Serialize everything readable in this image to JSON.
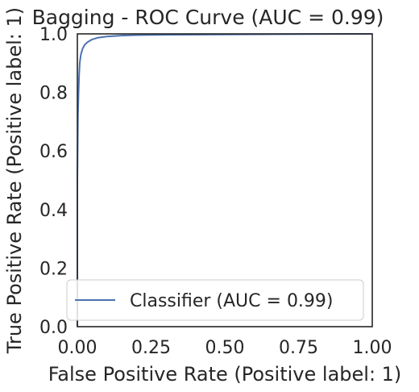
{
  "chart_data": {
    "type": "line",
    "title": "Bagging - ROC Curve (AUC = 0.99)",
    "xlabel": "False Positive Rate (Positive label: 1)",
    "ylabel": "True Positive Rate (Positive label: 1)",
    "xlim": [
      0,
      1
    ],
    "ylim": [
      0,
      1
    ],
    "x_ticks": [
      "0.00",
      "0.25",
      "0.50",
      "0.75",
      "1.00"
    ],
    "y_ticks": [
      "0.0",
      "0.2",
      "0.4",
      "0.6",
      "0.8",
      "1.0"
    ],
    "grid": false,
    "legend_position": "lower-right",
    "series": [
      {
        "name": "Classifier (AUC = 0.99)",
        "color": "#4c72b0",
        "x": [
          0.0,
          0.0,
          0.002,
          0.004,
          0.006,
          0.008,
          0.012,
          0.018,
          0.025,
          0.035,
          0.05,
          0.07,
          0.1,
          0.15,
          0.2,
          0.3,
          0.5,
          0.7,
          1.0
        ],
        "y": [
          0.0,
          0.5,
          0.72,
          0.8,
          0.86,
          0.9,
          0.93,
          0.95,
          0.963,
          0.972,
          0.981,
          0.987,
          0.991,
          0.994,
          0.996,
          0.997,
          0.998,
          0.999,
          1.0
        ]
      }
    ]
  }
}
